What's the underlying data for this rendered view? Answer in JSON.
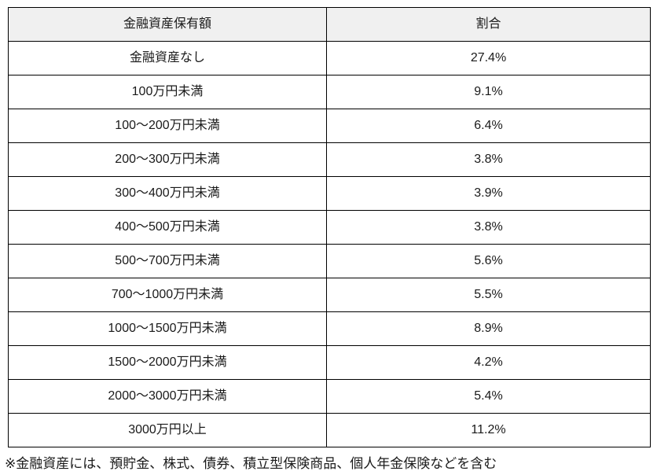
{
  "table": {
    "headers": [
      "金融資産保有額",
      "割合"
    ],
    "rows": [
      [
        "金融資産なし",
        "27.4%"
      ],
      [
        "100万円未満",
        "9.1%"
      ],
      [
        "100～200万円未満",
        "6.4%"
      ],
      [
        "200～300万円未満",
        "3.8%"
      ],
      [
        "300～400万円未満",
        "3.9%"
      ],
      [
        "400～500万円未満",
        "3.8%"
      ],
      [
        "500～700万円未満",
        "5.6%"
      ],
      [
        "700～1000万円未満",
        "5.5%"
      ],
      [
        "1000～1500万円未満",
        "8.9%"
      ],
      [
        "1500～2000万円未満",
        "4.2%"
      ],
      [
        "2000～3000万円未満",
        "5.4%"
      ],
      [
        "3000万円以上",
        "11.2%"
      ]
    ]
  },
  "footnote": "※金融資産には、預貯金、株式、債券、積立型保険商品、個人年金保険などを含む",
  "colors": {
    "border": "#000000",
    "header_background": "#f0f0f0",
    "text": "#1a1a1a",
    "page_background": "#ffffff"
  },
  "chart_data": {
    "type": "table",
    "title": "",
    "columns": [
      "金融資産保有額",
      "割合"
    ],
    "categories": [
      "金融資産なし",
      "100万円未満",
      "100～200万円未満",
      "200～300万円未満",
      "300～400万円未満",
      "400～500万円未満",
      "500～700万円未満",
      "700～1000万円未満",
      "1000～1500万円未満",
      "1500～2000万円未満",
      "2000～3000万円未満",
      "3000万円以上"
    ],
    "values_percent": [
      27.4,
      9.1,
      6.4,
      3.8,
      3.9,
      3.8,
      5.6,
      5.5,
      8.9,
      4.2,
      5.4,
      11.2
    ],
    "annotation": "※金融資産には、預貯金、株式、債券、積立型保険商品、個人年金保険などを含む"
  }
}
